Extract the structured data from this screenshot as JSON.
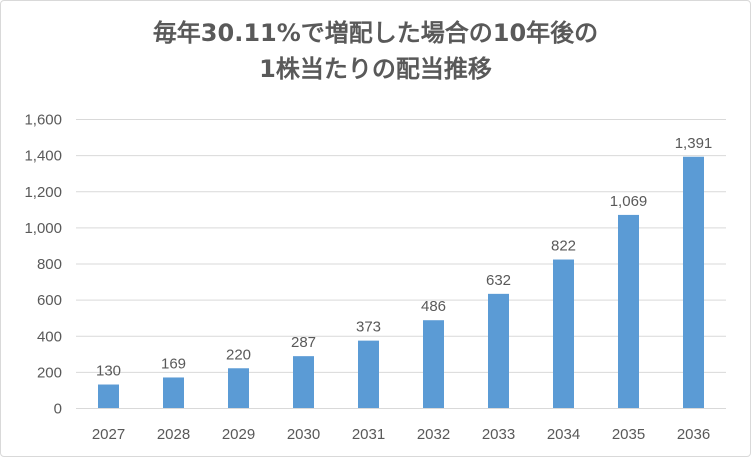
{
  "chart_data": {
    "type": "bar",
    "title_lines": [
      "毎年30.11%で増配した場合の10年後の",
      "1株当たりの配当推移"
    ],
    "categories": [
      "2027",
      "2028",
      "2029",
      "2030",
      "2031",
      "2032",
      "2033",
      "2034",
      "2035",
      "2036"
    ],
    "values": [
      130,
      169,
      220,
      287,
      373,
      486,
      632,
      822,
      1069,
      1391
    ],
    "data_labels": [
      "130",
      "169",
      "220",
      "287",
      "373",
      "486",
      "632",
      "822",
      "1,069",
      "1,391"
    ],
    "y_ticks": [
      0,
      200,
      400,
      600,
      800,
      1000,
      1200,
      1400,
      1600
    ],
    "y_tick_labels": [
      "0",
      "200",
      "400",
      "600",
      "800",
      "1,000",
      "1,200",
      "1,400",
      "1,600"
    ],
    "ylim": [
      0,
      1600
    ],
    "xlabel": "",
    "ylabel": "",
    "grid": true,
    "bar_color": "#5b9bd5",
    "grid_color": "#d9d9d9"
  }
}
